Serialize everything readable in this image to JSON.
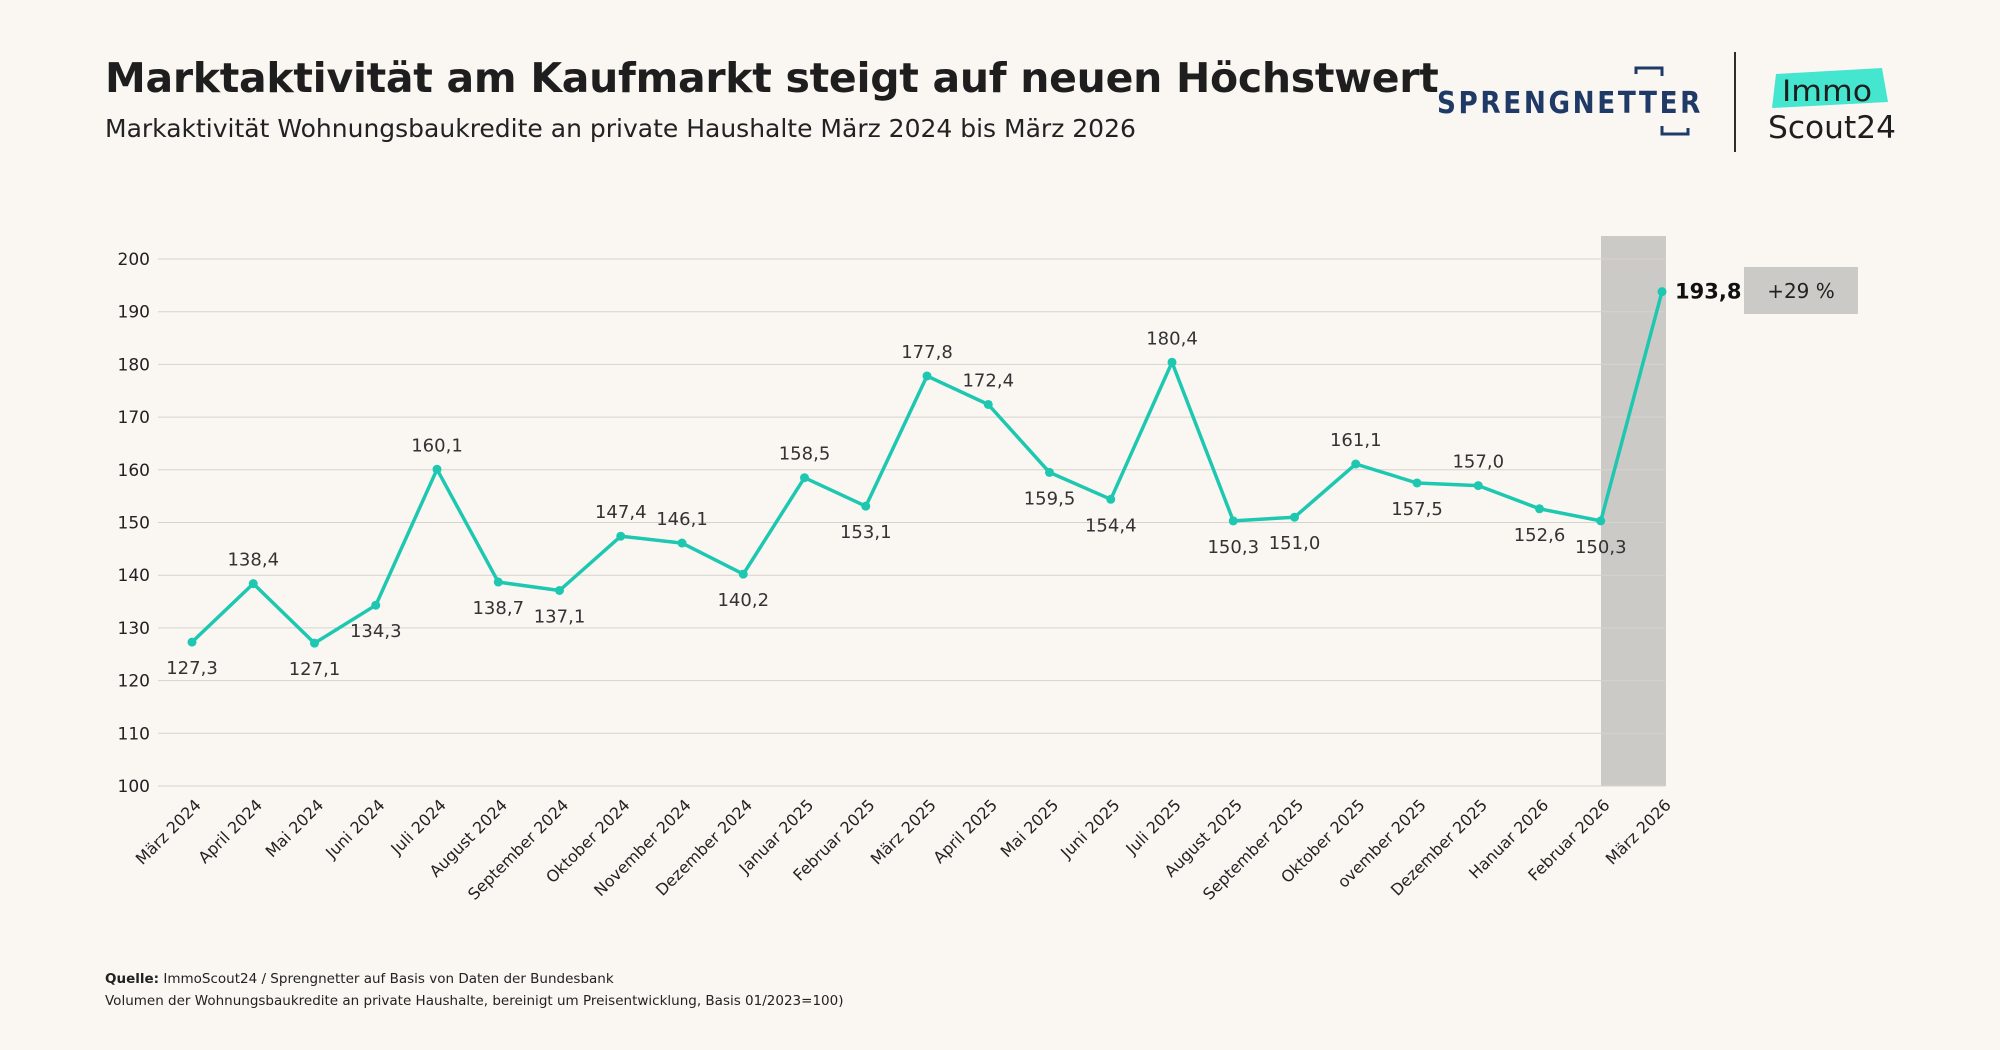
{
  "header": {
    "title": "Marktaktivität am Kaufmarkt steigt auf neuen Höchstwert",
    "subtitle": "Markaktivität Wohnungsbaukredite an private Haushalte März 2024 bis März 2026"
  },
  "logos": {
    "sprengnetter": "SPRENGNETTER",
    "immo": "Immo",
    "scout": "Scout24"
  },
  "colors": {
    "line": "#1ec8b0",
    "highlight": "#cccac7",
    "grid": "#d6d3cf",
    "logo_navy": "#1f3a66",
    "immo_teal": "#45e6cf"
  },
  "chart_data": {
    "type": "line",
    "categories": [
      "März 2024",
      "April 2024",
      "Mai 2024",
      "Juni 2024",
      "Juli 2024",
      "August 2024",
      "September 2024",
      "Oktober 2024",
      "November 2024",
      "Dezember 2024",
      "Januar 2025",
      "Februar 2025",
      "März 2025",
      "April 2025",
      "Mai 2025",
      "Juni 2025",
      "Juli 2025",
      "August 2025",
      "September 2025",
      "Oktober 2025",
      "ovember 2025",
      "Dezember 2025",
      "Hanuar 2026",
      "Februar 2026",
      "März 2026"
    ],
    "series": [
      {
        "values": [
          127.3,
          138.4,
          127.1,
          134.3,
          160.1,
          138.7,
          137.1,
          147.4,
          146.1,
          140.2,
          158.5,
          153.1,
          177.8,
          172.4,
          159.5,
          154.4,
          180.4,
          150.3,
          151.0,
          161.1,
          157.5,
          157.0,
          152.6,
          150.3,
          193.8
        ]
      }
    ],
    "data_labels": [
      "127,3",
      "138,4",
      "127,1",
      "134,3",
      "160,1",
      "138,7",
      "137,1",
      "147,4",
      "146,1",
      "140,2",
      "158,5",
      "153,1",
      "177,8",
      "172,4",
      "159,5",
      "154,4",
      "180,4",
      "150,3",
      "151,0",
      "161,1",
      "157,5",
      "157,0",
      "152,6",
      "150,3",
      "193,8"
    ],
    "label_positions": [
      "below",
      "above",
      "below",
      "below",
      "above",
      "below",
      "below",
      "above",
      "above",
      "below",
      "above",
      "below",
      "above",
      "above",
      "below",
      "below",
      "above",
      "below",
      "below",
      "above",
      "below",
      "above",
      "below",
      "below",
      "right"
    ],
    "ylim": [
      100,
      200
    ],
    "yticks": [
      100,
      110,
      120,
      130,
      140,
      150,
      160,
      170,
      180,
      190,
      200
    ],
    "grid": true,
    "highlight_category": "März 2026",
    "annotation": "+29 %"
  },
  "footer": {
    "source_label": "Quelle:",
    "source_text": " ImmoScout24 / Sprengnetter auf Basis von Daten der Bundesbank",
    "note": "Volumen der Wohnungsbaukredite an private Haushalte, bereinigt um Preisentwicklung, Basis 01/2023=100)"
  }
}
